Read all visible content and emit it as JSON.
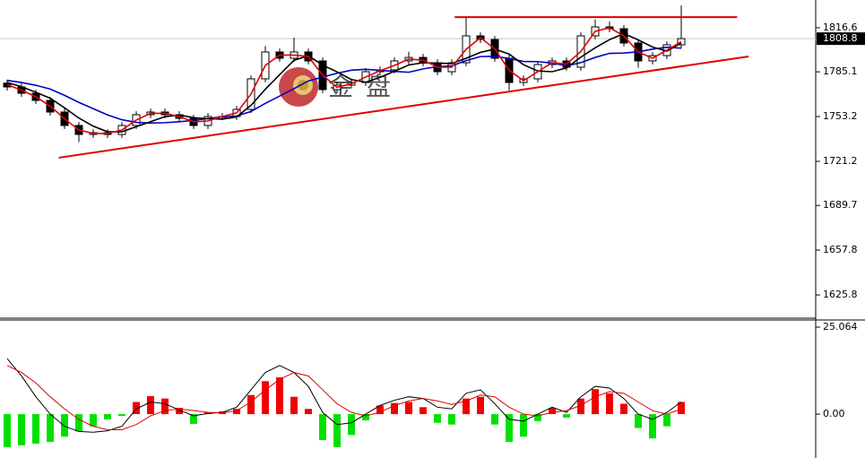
{
  "chart_data": [
    {
      "type": "candlestick",
      "open": [
        1777.0,
        1774.3,
        1769.8,
        1764.7,
        1756.4,
        1746.8,
        1740.4,
        1741.7,
        1740.4,
        1746.8,
        1754.5,
        1756.4,
        1754.5,
        1751.9,
        1746.8,
        1753.2,
        1753.2,
        1758.3,
        1780.1,
        1799.3,
        1794.8,
        1799.3,
        1792.9,
        1772.4,
        1775.6,
        1777.5,
        1785.2,
        1786.5,
        1792.9,
        1795.4,
        1791.6,
        1785.2,
        1791.6,
        1810.8,
        1808.2,
        1794.8,
        1777.5,
        1780.1,
        1790.3,
        1792.9,
        1788.4,
        1810.8,
        1817.2,
        1815.9,
        1805.7,
        1792.9,
        1796.7,
        1804.4
      ],
      "high": [
        1779.5,
        1776.8,
        1772.3,
        1767.2,
        1758.9,
        1749.3,
        1744.2,
        1744.2,
        1749.3,
        1757.0,
        1758.9,
        1758.9,
        1757.0,
        1754.4,
        1755.7,
        1755.7,
        1760.8,
        1782.6,
        1803.5,
        1801.8,
        1809.5,
        1801.8,
        1795.4,
        1778.1,
        1780.0,
        1787.7,
        1789.0,
        1795.4,
        1799.5,
        1797.9,
        1794.1,
        1794.1,
        1824.2,
        1813.3,
        1810.7,
        1797.3,
        1782.6,
        1792.8,
        1795.4,
        1795.4,
        1813.3,
        1822.5,
        1821.0,
        1818.4,
        1808.2,
        1799.2,
        1806.9,
        1832.5
      ],
      "low": [
        1771.8,
        1767.3,
        1762.2,
        1753.9,
        1744.3,
        1735.0,
        1737.9,
        1737.9,
        1737.9,
        1744.3,
        1752.0,
        1752.0,
        1749.4,
        1744.3,
        1744.3,
        1750.7,
        1750.7,
        1755.8,
        1777.6,
        1792.3,
        1792.3,
        1790.4,
        1769.9,
        1769.9,
        1773.1,
        1775.0,
        1782.7,
        1784.0,
        1790.4,
        1789.1,
        1782.7,
        1782.7,
        1789.1,
        1805.7,
        1792.3,
        1772.0,
        1775.0,
        1777.6,
        1787.8,
        1785.9,
        1785.9,
        1808.3,
        1813.4,
        1803.2,
        1788.0,
        1790.4,
        1794.2,
        1801.9
      ],
      "close": [
        1774.3,
        1769.8,
        1764.7,
        1756.4,
        1746.8,
        1740.4,
        1741.7,
        1740.4,
        1746.8,
        1754.5,
        1756.4,
        1754.5,
        1751.9,
        1746.8,
        1753.2,
        1753.2,
        1758.3,
        1780.1,
        1799.3,
        1794.8,
        1799.3,
        1792.9,
        1772.4,
        1775.6,
        1777.5,
        1785.2,
        1786.5,
        1792.9,
        1795.4,
        1791.6,
        1785.2,
        1791.6,
        1810.8,
        1808.2,
        1794.8,
        1777.5,
        1780.1,
        1790.3,
        1792.9,
        1788.4,
        1810.8,
        1817.2,
        1815.9,
        1805.7,
        1792.9,
        1796.7,
        1804.4,
        1808.8
      ],
      "series": [
        {
          "color": "#0000c8",
          "values": [
            1779,
            1777.5,
            1775.5,
            1772.8,
            1768.3,
            1763.3,
            1758.8,
            1754.3,
            1750.9,
            1749.0,
            1748.5,
            1748.8,
            1749.5,
            1750.4,
            1751.8,
            1752.9,
            1753.6,
            1756.8,
            1762.6,
            1767.8,
            1773.1,
            1778.6,
            1781.4,
            1784.1,
            1786.3,
            1786.9,
            1786.2,
            1785.4,
            1784.8,
            1787.2,
            1788.8,
            1789.4,
            1793.1,
            1796.0,
            1796.2,
            1794.6,
            1792.5,
            1792.4,
            1791.4,
            1789.4,
            1791.7,
            1795.4,
            1798.3,
            1798.5,
            1799.4,
            1801.3,
            1802.7,
            1802.0
          ]
        },
        {
          "color": "#000000",
          "values": [
            1777.5,
            1774.5,
            1770.5,
            1766.3,
            1759.4,
            1752.1,
            1746.3,
            1742.3,
            1742.3,
            1745.9,
            1749.5,
            1753.1,
            1754.3,
            1752.4,
            1751.6,
            1751.3,
            1752.9,
            1761.2,
            1772.7,
            1783.1,
            1793.4,
            1796.6,
            1789.9,
            1785.1,
            1779.6,
            1777.7,
            1781.2,
            1785.5,
            1790.0,
            1791.6,
            1791.3,
            1791.0,
            1794.8,
            1799.0,
            1801.4,
            1797.8,
            1790.2,
            1785.7,
            1785.2,
            1787.9,
            1795.6,
            1802.3,
            1808.1,
            1812.4,
            1807.9,
            1802.8,
            1799.9,
            1805.7
          ]
        },
        {
          "color": "#e00000",
          "values": [
            1776.0,
            1772.0,
            1767.3,
            1760.6,
            1751.6,
            1743.6,
            1741.1,
            1741.1,
            1743.6,
            1750.7,
            1755.5,
            1755.5,
            1753.2,
            1749.4,
            1750.0,
            1753.2,
            1755.8,
            1769.2,
            1789.7,
            1797.1,
            1797.1,
            1796.1,
            1782.7,
            1774.0,
            1776.6,
            1781.4,
            1785.9,
            1789.7,
            1794.2,
            1793.5,
            1788.4,
            1788.4,
            1801.2,
            1809.5,
            1801.5,
            1786.2,
            1778.8,
            1785.2,
            1791.6,
            1790.7,
            1799.6,
            1814.0,
            1816.6,
            1810.8,
            1799.3,
            1794.8,
            1800.6,
            1806.6
          ]
        }
      ],
      "lines": [
        {
          "color": "#e00000",
          "x": [
            31.2,
            50.9
          ],
          "y": [
            1824.2,
            1824.2
          ]
        },
        {
          "color": "#e00000",
          "x": [
            3.6,
            51.7
          ],
          "y": [
            1723.8,
            1796.1
          ]
        }
      ],
      "last_price": 1808.8,
      "watermark": "金盘",
      "ylim": [
        1609.2,
        1836.4
      ],
      "yticks": [
        1816.6,
        1785.1,
        1753.2,
        1721.2,
        1689.7,
        1657.8,
        1625.8
      ]
    },
    {
      "type": "macd",
      "histogram": [
        -9.5,
        -9,
        -8.5,
        -8,
        -6.5,
        -5,
        -3.5,
        -1.5,
        -0.5,
        3.5,
        5.2,
        4.5,
        1.8,
        -2.8,
        0.5,
        0.8,
        1.5,
        5.5,
        9.5,
        10.6,
        5,
        1.5,
        -7.5,
        -9.5,
        -6,
        -1.8,
        2.5,
        3.2,
        3.5,
        2,
        -2.5,
        -3,
        4.5,
        5,
        -3,
        -8,
        -6.5,
        -2,
        1.8,
        -1,
        4.5,
        7.2,
        6,
        3,
        -4,
        -7,
        -3.5,
        3.5
      ],
      "up_color": "#f00000",
      "down_color": "#00e000",
      "macd": {
        "color": "#000000",
        "values": [
          16,
          11,
          5,
          0,
          -3.5,
          -5,
          -5.2,
          -4.8,
          -3.5,
          1.5,
          3.5,
          3,
          1.2,
          -0.5,
          0.2,
          0.5,
          2,
          7,
          12,
          14,
          12,
          8,
          0.5,
          -3,
          -2.5,
          0,
          2.5,
          4,
          5,
          4.5,
          2,
          1.5,
          6,
          7,
          3,
          -1.5,
          -2,
          0,
          2,
          0.5,
          5,
          8,
          7.5,
          4.5,
          0,
          -1.5,
          0.5,
          3.5
        ]
      },
      "signal": {
        "color": "#e00000",
        "values": [
          14,
          12,
          9,
          5,
          1.5,
          -1.5,
          -3.5,
          -4.5,
          -4.5,
          -3,
          -0.5,
          1,
          1.5,
          1,
          0.5,
          0.4,
          1,
          3.5,
          7,
          10,
          12,
          11,
          7,
          3,
          0.5,
          -0.5,
          0.5,
          2.5,
          3.8,
          4.5,
          3.8,
          2.8,
          3.8,
          5.5,
          5,
          2,
          0,
          -0.5,
          0.5,
          1,
          2.5,
          5,
          6.5,
          6,
          3.5,
          1,
          0,
          1.5
        ]
      },
      "ylim": [
        -12.64,
        27.13
      ],
      "yticks": [
        25.064,
        {
          "value": 0,
          "label": "0.00"
        }
      ]
    }
  ]
}
